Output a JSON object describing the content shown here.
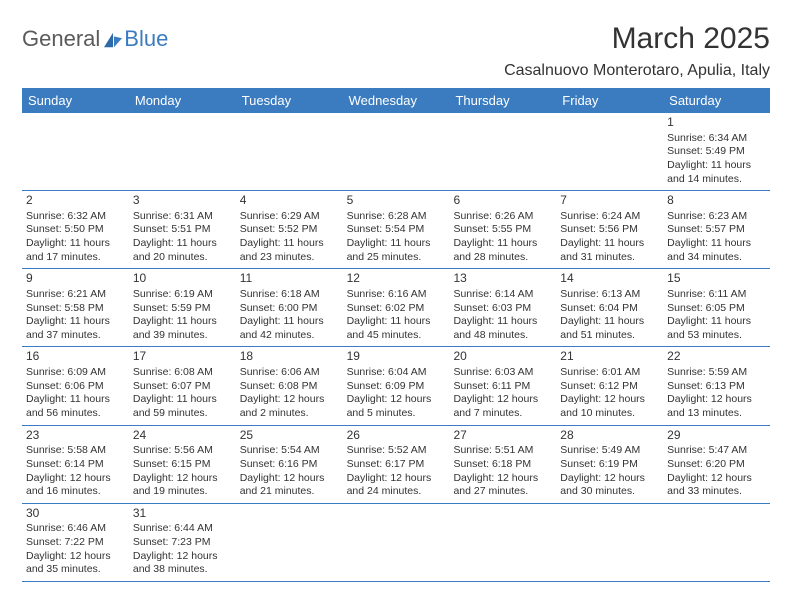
{
  "logo": {
    "textA": "General",
    "textB": "Blue"
  },
  "title": "March 2025",
  "location": "Casalnuovo Monterotaro, Apulia, Italy",
  "days_of_week": [
    "Sunday",
    "Monday",
    "Tuesday",
    "Wednesday",
    "Thursday",
    "Friday",
    "Saturday"
  ],
  "colors": {
    "header_bg": "#3b7bbf",
    "header_text": "#ffffff",
    "border": "#3b7bbf",
    "body_text": "#333333",
    "logo_gray": "#5a5a5a",
    "logo_blue": "#3b7bbf",
    "background": "#ffffff"
  },
  "typography": {
    "month_fontsize": 30,
    "location_fontsize": 16,
    "dayheader_fontsize": 13,
    "daynum_fontsize": 12,
    "cell_fontsize": 10.5
  },
  "grid": {
    "columns": 7,
    "rows": 6,
    "leading_blanks": 6,
    "trailing_blanks": 5
  },
  "cells": [
    {
      "n": "1",
      "sr": "6:34 AM",
      "ss": "5:49 PM",
      "dl": "11 hours and 14 minutes."
    },
    {
      "n": "2",
      "sr": "6:32 AM",
      "ss": "5:50 PM",
      "dl": "11 hours and 17 minutes."
    },
    {
      "n": "3",
      "sr": "6:31 AM",
      "ss": "5:51 PM",
      "dl": "11 hours and 20 minutes."
    },
    {
      "n": "4",
      "sr": "6:29 AM",
      "ss": "5:52 PM",
      "dl": "11 hours and 23 minutes."
    },
    {
      "n": "5",
      "sr": "6:28 AM",
      "ss": "5:54 PM",
      "dl": "11 hours and 25 minutes."
    },
    {
      "n": "6",
      "sr": "6:26 AM",
      "ss": "5:55 PM",
      "dl": "11 hours and 28 minutes."
    },
    {
      "n": "7",
      "sr": "6:24 AM",
      "ss": "5:56 PM",
      "dl": "11 hours and 31 minutes."
    },
    {
      "n": "8",
      "sr": "6:23 AM",
      "ss": "5:57 PM",
      "dl": "11 hours and 34 minutes."
    },
    {
      "n": "9",
      "sr": "6:21 AM",
      "ss": "5:58 PM",
      "dl": "11 hours and 37 minutes."
    },
    {
      "n": "10",
      "sr": "6:19 AM",
      "ss": "5:59 PM",
      "dl": "11 hours and 39 minutes."
    },
    {
      "n": "11",
      "sr": "6:18 AM",
      "ss": "6:00 PM",
      "dl": "11 hours and 42 minutes."
    },
    {
      "n": "12",
      "sr": "6:16 AM",
      "ss": "6:02 PM",
      "dl": "11 hours and 45 minutes."
    },
    {
      "n": "13",
      "sr": "6:14 AM",
      "ss": "6:03 PM",
      "dl": "11 hours and 48 minutes."
    },
    {
      "n": "14",
      "sr": "6:13 AM",
      "ss": "6:04 PM",
      "dl": "11 hours and 51 minutes."
    },
    {
      "n": "15",
      "sr": "6:11 AM",
      "ss": "6:05 PM",
      "dl": "11 hours and 53 minutes."
    },
    {
      "n": "16",
      "sr": "6:09 AM",
      "ss": "6:06 PM",
      "dl": "11 hours and 56 minutes."
    },
    {
      "n": "17",
      "sr": "6:08 AM",
      "ss": "6:07 PM",
      "dl": "11 hours and 59 minutes."
    },
    {
      "n": "18",
      "sr": "6:06 AM",
      "ss": "6:08 PM",
      "dl": "12 hours and 2 minutes."
    },
    {
      "n": "19",
      "sr": "6:04 AM",
      "ss": "6:09 PM",
      "dl": "12 hours and 5 minutes."
    },
    {
      "n": "20",
      "sr": "6:03 AM",
      "ss": "6:11 PM",
      "dl": "12 hours and 7 minutes."
    },
    {
      "n": "21",
      "sr": "6:01 AM",
      "ss": "6:12 PM",
      "dl": "12 hours and 10 minutes."
    },
    {
      "n": "22",
      "sr": "5:59 AM",
      "ss": "6:13 PM",
      "dl": "12 hours and 13 minutes."
    },
    {
      "n": "23",
      "sr": "5:58 AM",
      "ss": "6:14 PM",
      "dl": "12 hours and 16 minutes."
    },
    {
      "n": "24",
      "sr": "5:56 AM",
      "ss": "6:15 PM",
      "dl": "12 hours and 19 minutes."
    },
    {
      "n": "25",
      "sr": "5:54 AM",
      "ss": "6:16 PM",
      "dl": "12 hours and 21 minutes."
    },
    {
      "n": "26",
      "sr": "5:52 AM",
      "ss": "6:17 PM",
      "dl": "12 hours and 24 minutes."
    },
    {
      "n": "27",
      "sr": "5:51 AM",
      "ss": "6:18 PM",
      "dl": "12 hours and 27 minutes."
    },
    {
      "n": "28",
      "sr": "5:49 AM",
      "ss": "6:19 PM",
      "dl": "12 hours and 30 minutes."
    },
    {
      "n": "29",
      "sr": "5:47 AM",
      "ss": "6:20 PM",
      "dl": "12 hours and 33 minutes."
    },
    {
      "n": "30",
      "sr": "6:46 AM",
      "ss": "7:22 PM",
      "dl": "12 hours and 35 minutes."
    },
    {
      "n": "31",
      "sr": "6:44 AM",
      "ss": "7:23 PM",
      "dl": "12 hours and 38 minutes."
    }
  ],
  "labels": {
    "sunrise_prefix": "Sunrise: ",
    "sunset_prefix": "Sunset: ",
    "daylight_prefix": "Daylight: "
  }
}
